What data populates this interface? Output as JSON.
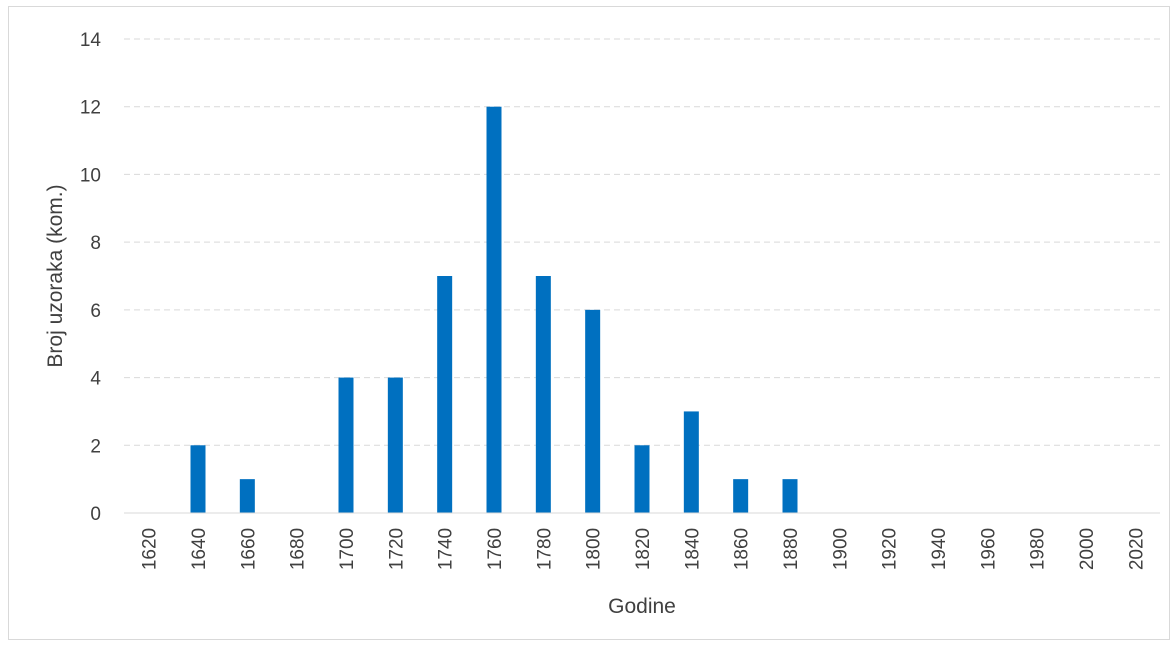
{
  "chart_data": {
    "type": "bar",
    "title": "",
    "xlabel": "Godine",
    "ylabel": "Broj uzoraka (kom.)",
    "categories": [
      "1620",
      "1640",
      "1660",
      "1680",
      "1700",
      "1720",
      "1740",
      "1760",
      "1780",
      "1800",
      "1820",
      "1840",
      "1860",
      "1880",
      "1900",
      "1920",
      "1940",
      "1960",
      "1980",
      "2000",
      "2020"
    ],
    "values": [
      0,
      2,
      1,
      0,
      4,
      4,
      7,
      12,
      7,
      6,
      2,
      3,
      1,
      1,
      0,
      0,
      0,
      0,
      0,
      0,
      0
    ],
    "ylim": [
      0,
      14
    ],
    "yticks": [
      "0",
      "2",
      "4",
      "6",
      "8",
      "10",
      "12",
      "14"
    ],
    "grid": true,
    "bar_color": "#0070c0"
  }
}
